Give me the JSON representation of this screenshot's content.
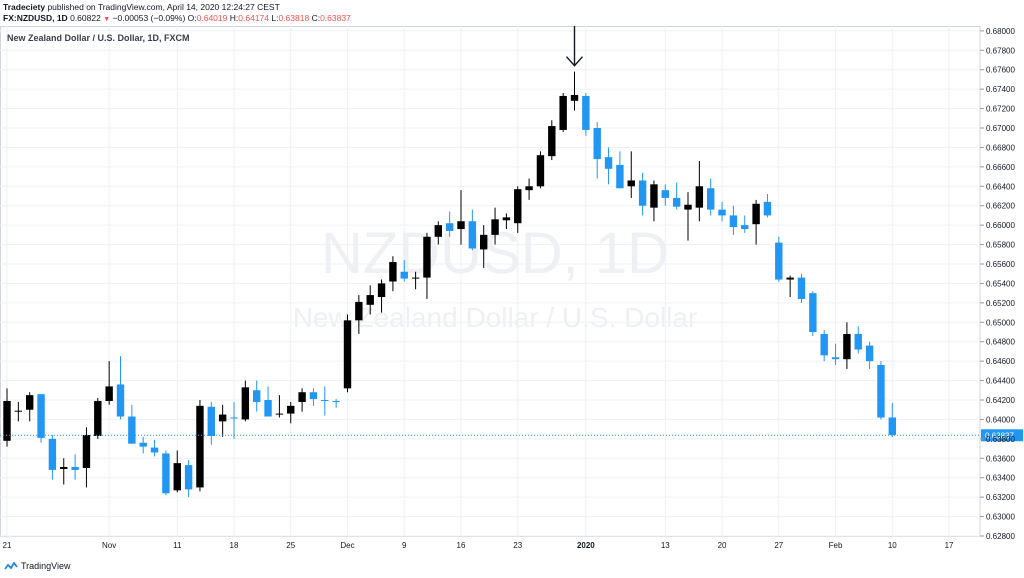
{
  "header": {
    "publisher": "Tradeciety",
    "published_text": "published on TradingView.com, April 14, 2020 12:24:27 CEST",
    "symbol": "FX:NZDUSD, 1D",
    "last": "0.60822",
    "change": "−0.00053 (−0.09%)",
    "o_label": "O:",
    "o_val": "0.64019",
    "h_label": "H:",
    "h_val": "0.64174",
    "l_label": "L:",
    "l_val": "0.63818",
    "c_label": "C:",
    "c_val": "0.63837"
  },
  "legend_title": "New Zealand Dollar / U.S. Dollar, 1D, FXCM",
  "watermark": {
    "symbol": "NZDUSD, 1D",
    "name": "New Zealand Dollar / U.S. Dollar"
  },
  "footer": {
    "brand": "TradingView"
  },
  "colors": {
    "up": "#000000",
    "down": "#2196f3",
    "grid": "#eef1f5",
    "price_line": "#2196f3",
    "text": "#131722"
  },
  "chart_data": {
    "type": "candlestick",
    "title": "New Zealand Dollar / U.S. Dollar, 1D, FXCM",
    "symbol": "NZDUSD",
    "timeframe": "1D",
    "ylim": [
      0.628,
      0.6805
    ],
    "y_ticks": [
      "0.68000",
      "0.67800",
      "0.67600",
      "0.67400",
      "0.67200",
      "0.67000",
      "0.66800",
      "0.66600",
      "0.66400",
      "0.66200",
      "0.66000",
      "0.65800",
      "0.65600",
      "0.65400",
      "0.65200",
      "0.65000",
      "0.64800",
      "0.64600",
      "0.64400",
      "0.64200",
      "0.64000",
      "0.63800",
      "0.63600",
      "0.63400",
      "0.63200",
      "0.63000",
      "0.62800"
    ],
    "x_ticks": [
      {
        "label": "21",
        "i": 0
      },
      {
        "label": "Nov",
        "i": 9
      },
      {
        "label": "11",
        "i": 15
      },
      {
        "label": "18",
        "i": 20
      },
      {
        "label": "25",
        "i": 25
      },
      {
        "label": "Dec",
        "i": 30
      },
      {
        "label": "9",
        "i": 35
      },
      {
        "label": "16",
        "i": 40
      },
      {
        "label": "23",
        "i": 45
      },
      {
        "label": "2020",
        "i": 51
      },
      {
        "label": "13",
        "i": 58
      },
      {
        "label": "20",
        "i": 63
      },
      {
        "label": "27",
        "i": 68
      },
      {
        "label": "Feb",
        "i": 73
      },
      {
        "label": "10",
        "i": 78
      },
      {
        "label": "17",
        "i": 83
      }
    ],
    "last_price": 0.63837,
    "last_price_label": "0.63837",
    "annotation": {
      "type": "arrow",
      "at_index": 50,
      "direction": "down"
    },
    "candles": [
      {
        "o": 0.6378,
        "h": 0.6432,
        "l": 0.6372,
        "c": 0.6419
      },
      {
        "o": 0.6408,
        "h": 0.6418,
        "l": 0.6398,
        "c": 0.6409
      },
      {
        "o": 0.641,
        "h": 0.6428,
        "l": 0.6398,
        "c": 0.6425
      },
      {
        "o": 0.6426,
        "h": 0.6426,
        "l": 0.6376,
        "c": 0.6381
      },
      {
        "o": 0.638,
        "h": 0.6384,
        "l": 0.6338,
        "c": 0.6348
      },
      {
        "o": 0.6349,
        "h": 0.636,
        "l": 0.6333,
        "c": 0.6351
      },
      {
        "o": 0.6351,
        "h": 0.6364,
        "l": 0.6338,
        "c": 0.6348
      },
      {
        "o": 0.635,
        "h": 0.6392,
        "l": 0.633,
        "c": 0.6384
      },
      {
        "o": 0.6383,
        "h": 0.6422,
        "l": 0.638,
        "c": 0.6419
      },
      {
        "o": 0.6419,
        "h": 0.646,
        "l": 0.6415,
        "c": 0.6434
      },
      {
        "o": 0.6436,
        "h": 0.6465,
        "l": 0.64,
        "c": 0.6403
      },
      {
        "o": 0.6403,
        "h": 0.6415,
        "l": 0.6375,
        "c": 0.6375
      },
      {
        "o": 0.6376,
        "h": 0.6382,
        "l": 0.6365,
        "c": 0.6372
      },
      {
        "o": 0.6371,
        "h": 0.6379,
        "l": 0.6362,
        "c": 0.6366
      },
      {
        "o": 0.6365,
        "h": 0.6368,
        "l": 0.6322,
        "c": 0.6324
      },
      {
        "o": 0.6327,
        "h": 0.6368,
        "l": 0.6325,
        "c": 0.6355
      },
      {
        "o": 0.6353,
        "h": 0.6358,
        "l": 0.632,
        "c": 0.6328
      },
      {
        "o": 0.633,
        "h": 0.642,
        "l": 0.6326,
        "c": 0.6414
      },
      {
        "o": 0.6413,
        "h": 0.6418,
        "l": 0.6374,
        "c": 0.6383
      },
      {
        "o": 0.6398,
        "h": 0.6415,
        "l": 0.6382,
        "c": 0.6405
      },
      {
        "o": 0.6402,
        "h": 0.6418,
        "l": 0.638,
        "c": 0.6401
      },
      {
        "o": 0.64,
        "h": 0.644,
        "l": 0.6398,
        "c": 0.6433
      },
      {
        "o": 0.643,
        "h": 0.644,
        "l": 0.6408,
        "c": 0.6418
      },
      {
        "o": 0.642,
        "h": 0.6434,
        "l": 0.6403,
        "c": 0.6403
      },
      {
        "o": 0.6405,
        "h": 0.6425,
        "l": 0.6402,
        "c": 0.6406
      },
      {
        "o": 0.6406,
        "h": 0.6418,
        "l": 0.6396,
        "c": 0.6414
      },
      {
        "o": 0.6418,
        "h": 0.6432,
        "l": 0.6408,
        "c": 0.6428
      },
      {
        "o": 0.6428,
        "h": 0.6432,
        "l": 0.6414,
        "c": 0.6421
      },
      {
        "o": 0.642,
        "h": 0.6434,
        "l": 0.6404,
        "c": 0.6419
      },
      {
        "o": 0.6419,
        "h": 0.6421,
        "l": 0.6412,
        "c": 0.6418
      },
      {
        "o": 0.6432,
        "h": 0.6508,
        "l": 0.6428,
        "c": 0.6502
      },
      {
        "o": 0.6502,
        "h": 0.6528,
        "l": 0.6488,
        "c": 0.6521
      },
      {
        "o": 0.6518,
        "h": 0.6538,
        "l": 0.6508,
        "c": 0.6528
      },
      {
        "o": 0.6526,
        "h": 0.6544,
        "l": 0.651,
        "c": 0.654
      },
      {
        "o": 0.6542,
        "h": 0.6568,
        "l": 0.6532,
        "c": 0.6562
      },
      {
        "o": 0.6552,
        "h": 0.6564,
        "l": 0.6542,
        "c": 0.6545
      },
      {
        "o": 0.6546,
        "h": 0.6552,
        "l": 0.6534,
        "c": 0.6546
      },
      {
        "o": 0.6546,
        "h": 0.6592,
        "l": 0.6524,
        "c": 0.6588
      },
      {
        "o": 0.6588,
        "h": 0.6604,
        "l": 0.658,
        "c": 0.66
      },
      {
        "o": 0.6602,
        "h": 0.6614,
        "l": 0.6588,
        "c": 0.6594
      },
      {
        "o": 0.6596,
        "h": 0.6636,
        "l": 0.658,
        "c": 0.6604
      },
      {
        "o": 0.6604,
        "h": 0.6616,
        "l": 0.6574,
        "c": 0.6576
      },
      {
        "o": 0.6575,
        "h": 0.66,
        "l": 0.6556,
        "c": 0.659
      },
      {
        "o": 0.659,
        "h": 0.6618,
        "l": 0.658,
        "c": 0.6606
      },
      {
        "o": 0.6605,
        "h": 0.6612,
        "l": 0.6596,
        "c": 0.6608
      },
      {
        "o": 0.6602,
        "h": 0.664,
        "l": 0.6592,
        "c": 0.6637
      },
      {
        "o": 0.6636,
        "h": 0.6648,
        "l": 0.6626,
        "c": 0.664
      },
      {
        "o": 0.664,
        "h": 0.6676,
        "l": 0.6638,
        "c": 0.6672
      },
      {
        "o": 0.6671,
        "h": 0.6708,
        "l": 0.6667,
        "c": 0.6702
      },
      {
        "o": 0.6698,
        "h": 0.6736,
        "l": 0.6696,
        "c": 0.6733
      },
      {
        "o": 0.6728,
        "h": 0.6758,
        "l": 0.6718,
        "c": 0.6734
      },
      {
        "o": 0.6733,
        "h": 0.6736,
        "l": 0.6692,
        "c": 0.6698
      },
      {
        "o": 0.67,
        "h": 0.6706,
        "l": 0.6648,
        "c": 0.6668
      },
      {
        "o": 0.667,
        "h": 0.668,
        "l": 0.6642,
        "c": 0.6658
      },
      {
        "o": 0.6662,
        "h": 0.6676,
        "l": 0.6638,
        "c": 0.6638
      },
      {
        "o": 0.664,
        "h": 0.6676,
        "l": 0.6628,
        "c": 0.6646
      },
      {
        "o": 0.6646,
        "h": 0.6654,
        "l": 0.661,
        "c": 0.662
      },
      {
        "o": 0.6618,
        "h": 0.6646,
        "l": 0.6604,
        "c": 0.6642
      },
      {
        "o": 0.6636,
        "h": 0.6642,
        "l": 0.662,
        "c": 0.6628
      },
      {
        "o": 0.6628,
        "h": 0.6644,
        "l": 0.6616,
        "c": 0.6619
      },
      {
        "o": 0.6616,
        "h": 0.6634,
        "l": 0.6584,
        "c": 0.6621
      },
      {
        "o": 0.6618,
        "h": 0.6666,
        "l": 0.6604,
        "c": 0.664
      },
      {
        "o": 0.6638,
        "h": 0.6648,
        "l": 0.661,
        "c": 0.6616
      },
      {
        "o": 0.6616,
        "h": 0.6624,
        "l": 0.6604,
        "c": 0.661
      },
      {
        "o": 0.661,
        "h": 0.662,
        "l": 0.659,
        "c": 0.6598
      },
      {
        "o": 0.66,
        "h": 0.661,
        "l": 0.6592,
        "c": 0.6596
      },
      {
        "o": 0.6601,
        "h": 0.6626,
        "l": 0.658,
        "c": 0.6622
      },
      {
        "o": 0.6624,
        "h": 0.6632,
        "l": 0.6608,
        "c": 0.661
      },
      {
        "o": 0.6582,
        "h": 0.6588,
        "l": 0.6542,
        "c": 0.6544
      },
      {
        "o": 0.6544,
        "h": 0.6548,
        "l": 0.6526,
        "c": 0.6546
      },
      {
        "o": 0.6546,
        "h": 0.655,
        "l": 0.652,
        "c": 0.6524
      },
      {
        "o": 0.653,
        "h": 0.6532,
        "l": 0.6486,
        "c": 0.649
      },
      {
        "o": 0.6488,
        "h": 0.6492,
        "l": 0.646,
        "c": 0.6466
      },
      {
        "o": 0.6464,
        "h": 0.6478,
        "l": 0.6456,
        "c": 0.6462
      },
      {
        "o": 0.6462,
        "h": 0.65,
        "l": 0.6452,
        "c": 0.6488
      },
      {
        "o": 0.6488,
        "h": 0.6496,
        "l": 0.6468,
        "c": 0.6472
      },
      {
        "o": 0.6476,
        "h": 0.648,
        "l": 0.6452,
        "c": 0.646
      },
      {
        "o": 0.6456,
        "h": 0.646,
        "l": 0.64,
        "c": 0.6402
      },
      {
        "o": 0.6402,
        "h": 0.6417,
        "l": 0.6382,
        "c": 0.6384
      }
    ]
  }
}
